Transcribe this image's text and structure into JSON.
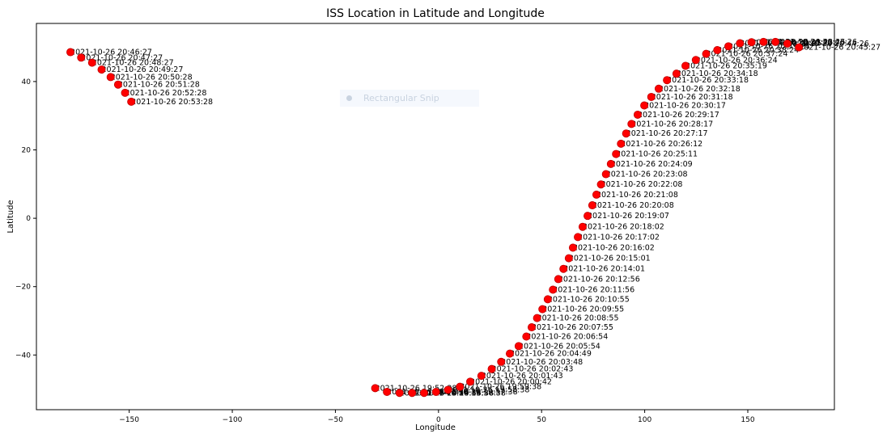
{
  "chart_data": {
    "type": "scatter",
    "title": "ISS Location in Latitude and Longitude",
    "xlabel": "Longitude",
    "ylabel": "Latitude",
    "xlim": [
      -195,
      192
    ],
    "ylim": [
      -56,
      57
    ],
    "xticks": [
      -150,
      -100,
      -50,
      0,
      50,
      100,
      150
    ],
    "yticks": [
      -40,
      -20,
      0,
      20,
      40
    ],
    "marker_color": "#ff0000",
    "edge_color": "#c00000",
    "grid": false,
    "points": [
      {
        "x": -30.7,
        "y": -49.7,
        "label": "2021-10-26 19:52:38"
      },
      {
        "x": -25.0,
        "y": -50.8,
        "label": "2021-10-26 19:53:38"
      },
      {
        "x": -18.9,
        "y": -51.1,
        "label": "2021-10-26 19:54:38"
      },
      {
        "x": -12.8,
        "y": -51.1,
        "label": "2021-10-26 19:55:38"
      },
      {
        "x": -7.0,
        "y": -51.1,
        "label": "2021-10-26 19:56:38"
      },
      {
        "x": -1.2,
        "y": -50.8,
        "label": "2021-10-26 19:57:38"
      },
      {
        "x": 4.6,
        "y": -50.2,
        "label": "2021-10-26 19:58:38"
      },
      {
        "x": 10.4,
        "y": -49.3,
        "label": "2021-10-26 19:59:38"
      },
      {
        "x": 15.4,
        "y": -47.8,
        "label": "2021-10-26 20:00:42"
      },
      {
        "x": 20.8,
        "y": -46.1,
        "label": "2021-10-26 20:01:43"
      },
      {
        "x": 25.8,
        "y": -44.1,
        "label": "2021-10-26 20:02:43"
      },
      {
        "x": 30.4,
        "y": -42.0,
        "label": "2021-10-26 20:03:48"
      },
      {
        "x": 34.6,
        "y": -39.6,
        "label": "2021-10-26 20:04:49"
      },
      {
        "x": 38.9,
        "y": -37.4,
        "label": "2021-10-26 20:05:54"
      },
      {
        "x": 42.6,
        "y": -34.6,
        "label": "2021-10-26 20:06:54"
      },
      {
        "x": 45.2,
        "y": -31.9,
        "label": "2021-10-26 20:07:55"
      },
      {
        "x": 47.8,
        "y": -29.2,
        "label": "2021-10-26 20:08:55"
      },
      {
        "x": 50.4,
        "y": -26.6,
        "label": "2021-10-26 20:09:55"
      },
      {
        "x": 53.0,
        "y": -23.7,
        "label": "2021-10-26 20:10:55"
      },
      {
        "x": 55.5,
        "y": -20.9,
        "label": "2021-10-26 20:11:56"
      },
      {
        "x": 58.1,
        "y": -17.8,
        "label": "2021-10-26 20:12:56"
      },
      {
        "x": 60.6,
        "y": -14.8,
        "label": "2021-10-26 20:14:01"
      },
      {
        "x": 63.2,
        "y": -11.7,
        "label": "2021-10-26 20:15:01"
      },
      {
        "x": 65.2,
        "y": -8.6,
        "label": "2021-10-26 20:16:02"
      },
      {
        "x": 67.6,
        "y": -5.5,
        "label": "2021-10-26 20:17:02"
      },
      {
        "x": 69.9,
        "y": -2.5,
        "label": "2021-10-26 20:18:02"
      },
      {
        "x": 72.3,
        "y": 0.7,
        "label": "2021-10-26 20:19:07"
      },
      {
        "x": 74.6,
        "y": 3.8,
        "label": "2021-10-26 20:20:08"
      },
      {
        "x": 76.6,
        "y": 6.9,
        "label": "2021-10-26 20:21:08"
      },
      {
        "x": 78.8,
        "y": 9.9,
        "label": "2021-10-26 20:22:08"
      },
      {
        "x": 81.2,
        "y": 12.9,
        "label": "2021-10-26 20:23:08"
      },
      {
        "x": 83.6,
        "y": 15.9,
        "label": "2021-10-26 20:24:09"
      },
      {
        "x": 86.1,
        "y": 18.8,
        "label": "2021-10-26 20:25:11"
      },
      {
        "x": 88.5,
        "y": 21.8,
        "label": "2021-10-26 20:26:12"
      },
      {
        "x": 91.0,
        "y": 24.8,
        "label": "2021-10-26 20:27:17"
      },
      {
        "x": 93.6,
        "y": 27.6,
        "label": "2021-10-26 20:28:17"
      },
      {
        "x": 96.6,
        "y": 30.3,
        "label": "2021-10-26 20:29:17"
      },
      {
        "x": 99.8,
        "y": 33.0,
        "label": "2021-10-26 20:30:17"
      },
      {
        "x": 103.2,
        "y": 35.5,
        "label": "2021-10-26 20:31:18"
      },
      {
        "x": 106.8,
        "y": 37.9,
        "label": "2021-10-26 20:32:18"
      },
      {
        "x": 110.8,
        "y": 40.4,
        "label": "2021-10-26 20:33:18"
      },
      {
        "x": 115.4,
        "y": 42.3,
        "label": "2021-10-26 20:34:18"
      },
      {
        "x": 119.8,
        "y": 44.6,
        "label": "2021-10-26 20:35:19"
      },
      {
        "x": 124.8,
        "y": 46.3,
        "label": "2021-10-26 20:36:24"
      },
      {
        "x": 129.8,
        "y": 48.1,
        "label": "2021-10-26 20:37:24"
      },
      {
        "x": 135.2,
        "y": 49.2,
        "label": "2021-10-26 20:38:24"
      },
      {
        "x": 140.6,
        "y": 50.3,
        "label": "2021-10-26 20:39:24"
      },
      {
        "x": 146.2,
        "y": 51.2,
        "label": "2021-10-26 20:40:25"
      },
      {
        "x": 151.8,
        "y": 51.5,
        "label": "2021-10-26 20:41:25"
      },
      {
        "x": 157.6,
        "y": 51.6,
        "label": "2021-10-26 20:42:26"
      },
      {
        "x": 163.4,
        "y": 51.6,
        "label": "2021-10-26 20:43:26"
      },
      {
        "x": 169.2,
        "y": 51.1,
        "label": "2021-10-26 20:44:26"
      },
      {
        "x": 174.8,
        "y": 50.0,
        "label": "2021-10-26 20:45:27"
      },
      {
        "x": -178.5,
        "y": 48.6,
        "label": "2021-10-26 20:46:27"
      },
      {
        "x": -173.3,
        "y": 47.0,
        "label": "2021-10-26 20:47:27"
      },
      {
        "x": -168.0,
        "y": 45.5,
        "label": "2021-10-26 20:48:27"
      },
      {
        "x": -163.4,
        "y": 43.5,
        "label": "2021-10-26 20:49:27"
      },
      {
        "x": -159.0,
        "y": 41.3,
        "label": "2021-10-26 20:50:28"
      },
      {
        "x": -155.4,
        "y": 39.1,
        "label": "2021-10-26 20:51:28"
      },
      {
        "x": -152.0,
        "y": 36.7,
        "label": "2021-10-26 20:52:28"
      },
      {
        "x": -149.0,
        "y": 34.1,
        "label": "2021-10-26 20:53:28"
      }
    ]
  },
  "overlay": {
    "label": "Rectangular Snip",
    "icon": "snip-icon"
  }
}
